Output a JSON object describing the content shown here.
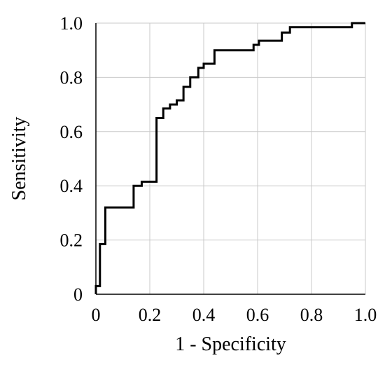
{
  "chart_data": {
    "type": "line",
    "title": "",
    "xlabel": "1 - Specificity",
    "ylabel": "Sensitivity",
    "xlim": [
      0,
      1
    ],
    "ylim": [
      0,
      1
    ],
    "grid": true,
    "x_ticks": [
      "0",
      "0.2",
      "0.4",
      "0.6",
      "0.8",
      "1.0"
    ],
    "y_ticks": [
      "0",
      "0.2",
      "0.4",
      "0.6",
      "0.8",
      "1.0"
    ],
    "line_color": "#000000",
    "series": [
      {
        "x": [
          0,
          0,
          0.015,
          0.015,
          0.035,
          0.035,
          0.06,
          0.06,
          0.14,
          0.14,
          0.17,
          0.17,
          0.225,
          0.225,
          0.25,
          0.25,
          0.275,
          0.275,
          0.3,
          0.3,
          0.325,
          0.325,
          0.35,
          0.35,
          0.38,
          0.38,
          0.4,
          0.4,
          0.44,
          0.44,
          0.465,
          0.465,
          0.585,
          0.585,
          0.605,
          0.605,
          0.69,
          0.69,
          0.72,
          0.72,
          0.95,
          0.95,
          1.0
        ],
        "y": [
          0,
          0.03,
          0.03,
          0.185,
          0.185,
          0.32,
          0.32,
          0.32,
          0.32,
          0.4,
          0.4,
          0.415,
          0.415,
          0.65,
          0.65,
          0.685,
          0.685,
          0.7,
          0.7,
          0.715,
          0.715,
          0.765,
          0.765,
          0.8,
          0.8,
          0.835,
          0.835,
          0.85,
          0.85,
          0.9,
          0.9,
          0.9,
          0.9,
          0.92,
          0.92,
          0.935,
          0.935,
          0.965,
          0.965,
          0.985,
          0.985,
          1.0,
          1.0
        ]
      }
    ]
  }
}
